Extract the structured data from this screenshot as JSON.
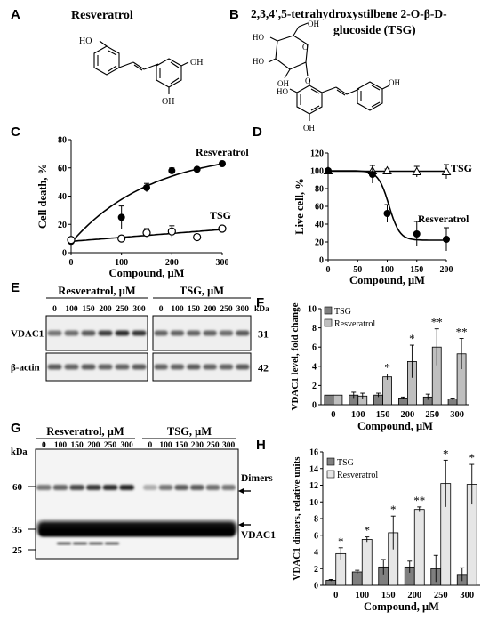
{
  "panels": {
    "A": {
      "label": "A",
      "title": "Resveratrol",
      "groups": [
        "HO",
        "OH",
        "OH"
      ]
    },
    "B": {
      "label": "B",
      "title_line1": "2,3,4',5-tetrahydroxystilbene 2-O-β-D-",
      "title_line2": "glucoside (TSG)",
      "groups": [
        "HO",
        "HO",
        "OH",
        "OH",
        "O",
        "O",
        "OH",
        "HO",
        "OH"
      ]
    },
    "C": {
      "label": "C"
    },
    "D": {
      "label": "D"
    },
    "E": {
      "label": "E",
      "group1": "Resveratrol, μM",
      "group2": "TSG, μM",
      "doses": [
        "0",
        "100",
        "150",
        "200",
        "250",
        "300"
      ],
      "unit": "kDa",
      "rows": [
        {
          "name": "VDAC1",
          "kda": "31"
        },
        {
          "name": "β-actin",
          "kda": "42"
        }
      ],
      "band_intensity": {
        "VDAC1": {
          "resveratrol": [
            0.45,
            0.5,
            0.6,
            0.75,
            0.85,
            0.8
          ],
          "tsg": [
            0.55,
            0.55,
            0.55,
            0.55,
            0.5,
            0.6
          ]
        },
        "beta_actin": {
          "resveratrol": [
            0.6,
            0.55,
            0.6,
            0.55,
            0.55,
            0.6
          ],
          "tsg": [
            0.55,
            0.55,
            0.6,
            0.55,
            0.55,
            0.6
          ]
        }
      }
    },
    "F": {
      "label": "F"
    },
    "G": {
      "label": "G",
      "group1": "Resveratrol, μM",
      "group2": "TSG, μM",
      "doses": [
        "0",
        "100",
        "150",
        "200",
        "250",
        "300"
      ],
      "unit": "kDa",
      "markers": [
        "60",
        "35",
        "25"
      ],
      "annotations": [
        "Dimers",
        "VDAC1"
      ],
      "dimer_intensity": {
        "resveratrol": [
          0.45,
          0.55,
          0.7,
          0.8,
          0.85,
          0.9
        ],
        "tsg": [
          0.15,
          0.45,
          0.6,
          0.6,
          0.5,
          0.45
        ]
      }
    },
    "H": {
      "label": "H"
    }
  },
  "chart_data": [
    {
      "panel": "C",
      "type": "scatter",
      "xlabel": "Compound, μM",
      "ylabel": "Cell death, %",
      "xlim": [
        0,
        300
      ],
      "ylim": [
        0,
        80
      ],
      "xticks": [
        "0",
        "100",
        "200",
        "300"
      ],
      "yticks": [
        "0",
        "20",
        "40",
        "60",
        "80"
      ],
      "series": [
        {
          "name": "Resveratrol",
          "marker": "filled-circle",
          "x": [
            0,
            100,
            150,
            200,
            250,
            300
          ],
          "y": [
            8,
            25,
            46,
            58,
            59,
            63
          ],
          "err": [
            2,
            8,
            3,
            2,
            1,
            1
          ],
          "fit": "saturating"
        },
        {
          "name": "TSG",
          "marker": "open-circle",
          "x": [
            0,
            100,
            150,
            200,
            250,
            300
          ],
          "y": [
            9,
            10,
            14,
            15,
            11,
            17
          ],
          "err": [
            2,
            2,
            3,
            4,
            1,
            1
          ],
          "fit": "linear"
        }
      ]
    },
    {
      "panel": "D",
      "type": "scatter",
      "xlabel": "Compound, μM",
      "ylabel": "Live cell, %",
      "xlim": [
        0,
        200
      ],
      "ylim": [
        0,
        120
      ],
      "xticks": [
        "0",
        "50",
        "100",
        "150",
        "200"
      ],
      "yticks": [
        "0",
        "20",
        "40",
        "60",
        "80",
        "100",
        "120"
      ],
      "series": [
        {
          "name": "TSG",
          "marker": "open-triangle",
          "x": [
            0,
            75,
            100,
            150,
            200
          ],
          "y": [
            100,
            100,
            100,
            99,
            99
          ],
          "err": [
            2,
            6,
            2,
            6,
            8
          ],
          "fit": "flat"
        },
        {
          "name": "Resveratrol",
          "marker": "filled-circle",
          "x": [
            0,
            75,
            100,
            150,
            200
          ],
          "y": [
            100,
            96,
            52,
            29,
            23
          ],
          "err": [
            2,
            10,
            10,
            14,
            13
          ],
          "fit": "sigmoid"
        }
      ]
    },
    {
      "panel": "F",
      "type": "bar",
      "xlabel": "Compound, μM",
      "ylabel": "VDAC1 level, fold change",
      "categories": [
        "0",
        "100",
        "150",
        "200",
        "250",
        "300"
      ],
      "ylim": [
        0,
        10
      ],
      "yticks": [
        "0",
        "2",
        "4",
        "6",
        "8",
        "10"
      ],
      "legend": "top-left",
      "series": [
        {
          "name": "TSG",
          "color": "#7f7f7f",
          "values": [
            1.0,
            1.0,
            1.0,
            0.7,
            0.8,
            0.6
          ],
          "err": [
            0,
            0.3,
            0.2,
            0.1,
            0.3,
            0.1
          ]
        },
        {
          "name": "Resveratrol",
          "color": "#bfbfbf",
          "values": [
            1.0,
            0.9,
            2.9,
            4.5,
            6.0,
            5.3
          ],
          "err": [
            0,
            0.3,
            0.3,
            1.7,
            1.9,
            1.6
          ]
        }
      ],
      "significance": [
        "",
        "",
        "*",
        "*",
        "**",
        "**"
      ]
    },
    {
      "panel": "H",
      "type": "bar",
      "xlabel": "Compound, μM",
      "ylabel": "VDAC1 dimers, relative units",
      "categories": [
        "0",
        "100",
        "150",
        "200",
        "250",
        "300"
      ],
      "ylim": [
        0,
        16
      ],
      "yticks": [
        "0",
        "2",
        "4",
        "6",
        "8",
        "10",
        "12",
        "14",
        "16"
      ],
      "legend": "top-left",
      "series": [
        {
          "name": "TSG",
          "color": "#7f7f7f",
          "values": [
            0.6,
            1.6,
            2.2,
            2.2,
            2.0,
            1.3
          ],
          "err": [
            0.1,
            0.2,
            0.9,
            0.7,
            1.6,
            0.8
          ]
        },
        {
          "name": "Resveratrol",
          "color": "#e6e6e6",
          "values": [
            3.8,
            5.5,
            6.3,
            9.1,
            12.2,
            12.1
          ],
          "err": [
            0.7,
            0.3,
            2.0,
            0.3,
            2.8,
            2.4
          ]
        }
      ],
      "significance": [
        "*",
        "*",
        "*",
        "**",
        "*",
        "*"
      ]
    }
  ]
}
